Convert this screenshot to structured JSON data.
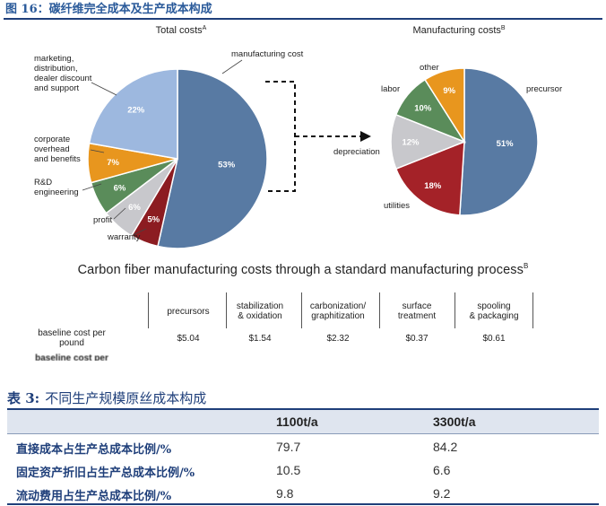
{
  "figure_title": "图 16：碳纤维完全成本及生产成本构成",
  "chart_data": [
    {
      "type": "pie",
      "title": "Total costs",
      "title_superscript": "A",
      "slices": [
        {
          "label": "manufacturing cost",
          "value": 53,
          "value_label": "53%",
          "color": "#587aa3"
        },
        {
          "label": "warranty",
          "value": 5,
          "value_label": "5%",
          "color": "#8c1c21"
        },
        {
          "label": "profit",
          "value": 6,
          "value_label": "6%",
          "color": "#c8c8cc"
        },
        {
          "label": "R&D engineering",
          "value": 6,
          "value_label": "6%",
          "color": "#5a8c5a"
        },
        {
          "label": "corporate overhead and benefits",
          "value": 7,
          "value_label": "7%",
          "color": "#e8961e"
        },
        {
          "label": "marketing, distribution, dealer discount and support",
          "value": 22,
          "value_label": "22%",
          "color": "#9db8df"
        }
      ]
    },
    {
      "type": "pie",
      "title": "Manufacturing costs",
      "title_superscript": "B",
      "slices": [
        {
          "label": "precursor",
          "value": 51,
          "value_label": "51%",
          "color": "#587aa3"
        },
        {
          "label": "utilities",
          "value": 18,
          "value_label": "18%",
          "color": "#a42228"
        },
        {
          "label": "depreciation",
          "value": 12,
          "value_label": "12%",
          "color": "#c8c8cc"
        },
        {
          "label": "labor",
          "value": 10,
          "value_label": "10%",
          "color": "#5a8c5a"
        },
        {
          "label": "other",
          "value": 9,
          "value_label": "9%",
          "color": "#e8961e"
        }
      ]
    }
  ],
  "label_lines": {
    "marketing": [
      "marketing,",
      "distribution,",
      "dealer discount",
      "and support"
    ],
    "corporate": [
      "corporate",
      "overhead",
      "and benefits"
    ],
    "rnd": [
      "R&D",
      "engineering"
    ],
    "profit": [
      "profit"
    ],
    "warranty": [
      "warranty"
    ],
    "manufacturing": [
      "manufacturing cost"
    ],
    "precursor": [
      "precursor"
    ],
    "utilities": [
      "utilities"
    ],
    "depreciation": [
      "depreciation"
    ],
    "labor": [
      "labor"
    ],
    "other": [
      "other"
    ]
  },
  "table1": {
    "title": "Carbon fiber manufacturing costs through a standard manufacturing process",
    "title_superscript": "B",
    "columns": [
      [
        "precursors"
      ],
      [
        "stabilization",
        "& oxidation"
      ],
      [
        "carbonization/",
        "graphitization"
      ],
      [
        "surface",
        "treatment"
      ],
      [
        "spooling",
        "& packaging"
      ]
    ],
    "rows": [
      {
        "label": [
          "baseline cost per",
          "pound"
        ],
        "values": [
          "$5.04",
          "$1.54",
          "$2.32",
          "$0.37",
          "$0.61"
        ]
      },
      {
        "label": [
          "baseline cost per"
        ],
        "values": [
          "",
          "",
          "",
          "",
          ""
        ]
      }
    ]
  },
  "table3": {
    "number": "表 3:",
    "title": "不同生产规模原丝成本构成",
    "headers": [
      "1100t/a",
      "3300t/a"
    ],
    "rows": [
      {
        "label": "直接成本占生产总成本比例/%",
        "values": [
          "79.7",
          "84.2"
        ]
      },
      {
        "label": "固定资产折旧占生产总成本比例/%",
        "values": [
          "10.5",
          "6.6"
        ]
      },
      {
        "label": "流动费用占生产总成本比例/%",
        "values": [
          "9.8",
          "9.2"
        ]
      }
    ]
  }
}
